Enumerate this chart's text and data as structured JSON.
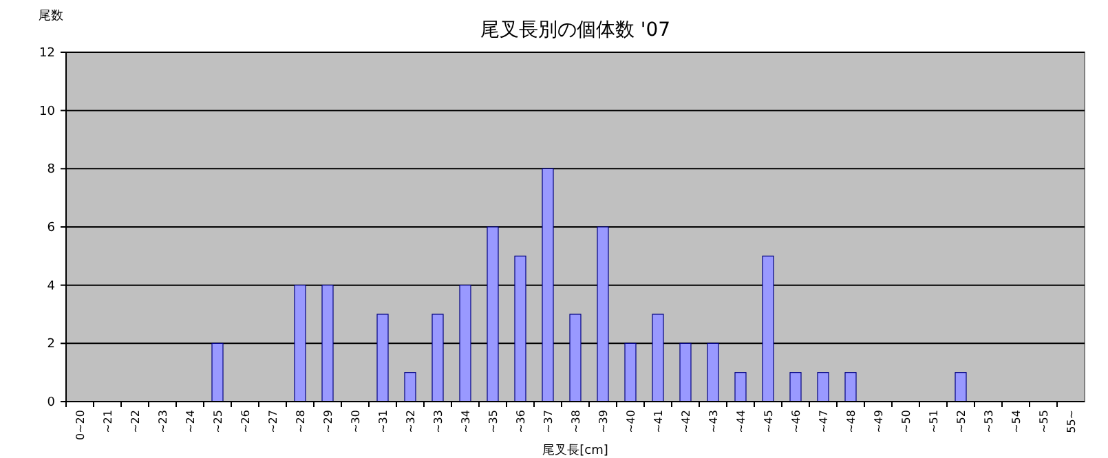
{
  "chart_data": {
    "type": "bar",
    "title": "尾叉長別の個体数 '07",
    "xlabel": "尾叉長[cm]",
    "ylabel": "尾数",
    "categories": [
      "0~20",
      "~21",
      "~22",
      "~23",
      "~24",
      "~25",
      "~26",
      "~27",
      "~28",
      "~29",
      "~30",
      "~31",
      "~32",
      "~33",
      "~34",
      "~35",
      "~36",
      "~37",
      "~38",
      "~39",
      "~40",
      "~41",
      "~42",
      "~43",
      "~44",
      "~45",
      "~46",
      "~47",
      "~48",
      "~49",
      "~50",
      "~51",
      "~52",
      "~53",
      "~54",
      "~55",
      "55~"
    ],
    "values": [
      0,
      0,
      0,
      0,
      0,
      2,
      0,
      0,
      4,
      4,
      0,
      3,
      1,
      3,
      4,
      6,
      5,
      8,
      3,
      6,
      2,
      3,
      2,
      2,
      1,
      5,
      1,
      1,
      1,
      0,
      0,
      0,
      1,
      0,
      0,
      0,
      0
    ],
    "color": "#9999ff",
    "ylim": [
      0,
      12
    ],
    "yticks": [
      0,
      2,
      4,
      6,
      8,
      10,
      12
    ],
    "grid": "y"
  }
}
